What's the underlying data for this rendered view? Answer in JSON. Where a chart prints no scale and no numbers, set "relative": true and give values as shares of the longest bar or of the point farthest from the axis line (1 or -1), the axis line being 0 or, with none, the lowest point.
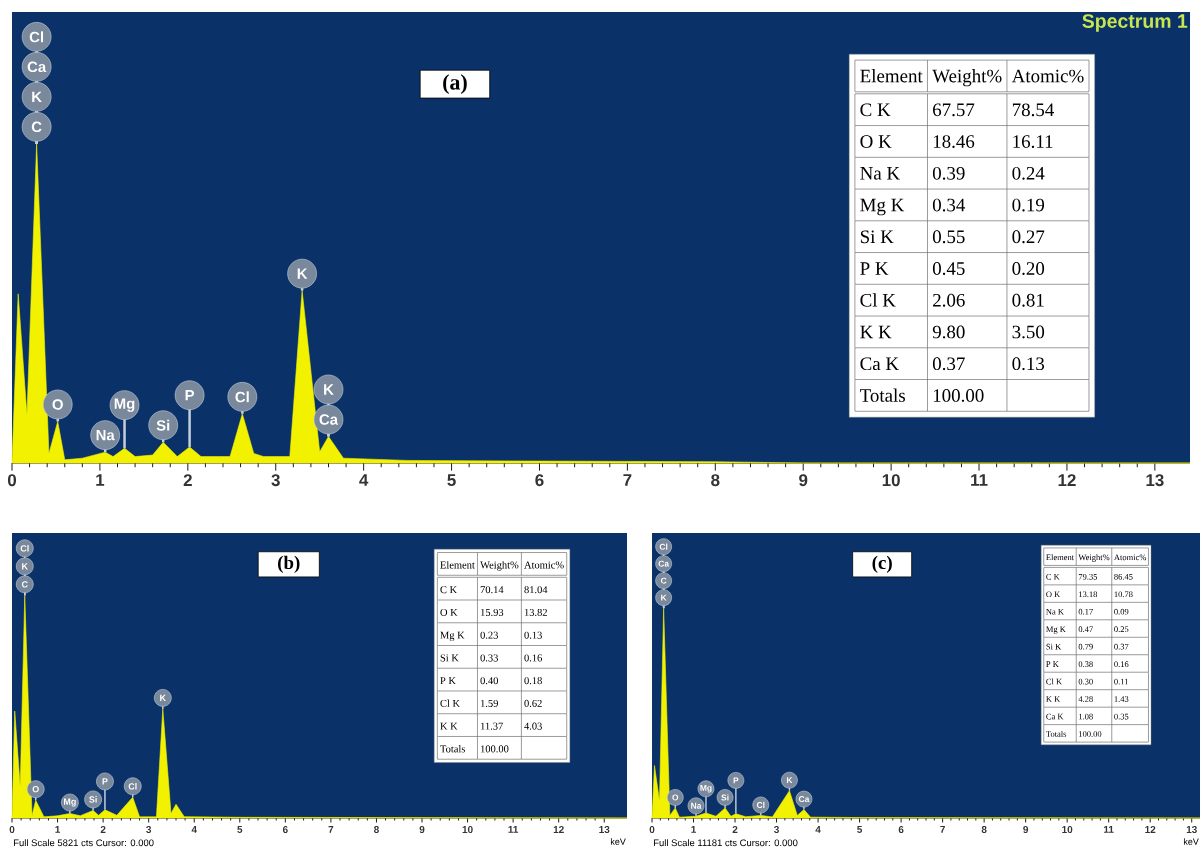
{
  "chart_data": [
    {
      "type": "area",
      "title": "(a)",
      "subtitle": "Spectrum 1",
      "relative": true,
      "color": "#f2f200",
      "xlim": [
        0,
        13.4
      ],
      "xticks": [
        0,
        1,
        2,
        3,
        4,
        5,
        6,
        7,
        8,
        9,
        10,
        11,
        12,
        13
      ],
      "x": [
        0,
        0.07,
        0.17,
        0.28,
        0.42,
        0.52,
        0.6,
        0.8,
        1.06,
        1.15,
        1.28,
        1.4,
        1.6,
        1.72,
        1.88,
        2.02,
        2.15,
        2.48,
        2.62,
        2.75,
        2.86,
        3.16,
        3.3,
        3.5,
        3.6,
        3.77,
        4.5,
        6,
        8,
        9,
        13.4
      ],
      "values": [
        0,
        0.53,
        0.15,
        1,
        0.03,
        0.13,
        0.01,
        0.015,
        0.034,
        0.02,
        0.046,
        0.02,
        0.025,
        0.065,
        0.02,
        0.05,
        0.02,
        0.02,
        0.154,
        0.03,
        0.02,
        0.02,
        0.54,
        0.035,
        0.083,
        0.015,
        0.008,
        0.006,
        0.004,
        0,
        0
      ],
      "annotations": [
        {
          "text": "C",
          "x": 0.28,
          "y": 1
        },
        {
          "text": "K",
          "x": 0.28,
          "y": 1
        },
        {
          "text": "Ca",
          "x": 0.28,
          "y": 1
        },
        {
          "text": "Cl",
          "x": 0.28,
          "y": 1
        },
        {
          "text": "O",
          "x": 0.52,
          "y": 0.13
        },
        {
          "text": "Na",
          "x": 1.06,
          "y": 0.034
        },
        {
          "text": "Mg",
          "x": 1.28,
          "y": 0.046
        },
        {
          "text": "Si",
          "x": 1.72,
          "y": 0.065
        },
        {
          "text": "P",
          "x": 2.02,
          "y": 0.05
        },
        {
          "text": "Cl",
          "x": 2.62,
          "y": 0.154
        },
        {
          "text": "K",
          "x": 3.3,
          "y": 0.54
        },
        {
          "text": "Ca",
          "x": 3.6,
          "y": 0.083
        },
        {
          "text": "K",
          "x": 3.6,
          "y": 0.083
        }
      ]
    },
    {
      "type": "other",
      "legend_title": "Element",
      "data_labels": true,
      "categories": [
        "C K",
        "O K",
        "Na K",
        "Mg K",
        "Si K",
        "P K",
        "Cl K",
        "K K",
        "Ca K",
        "Totals"
      ],
      "series": [
        {
          "name": "Weight%",
          "values": [
            67.57,
            18.46,
            0.39,
            0.34,
            0.55,
            0.45,
            2.06,
            9.8,
            0.37,
            100
          ],
          "value_labels": [
            "67.57",
            "18.46",
            "0.39",
            "0.34",
            "0.55",
            "0.45",
            "2.06",
            "9.80",
            "0.37",
            "100.00"
          ]
        },
        {
          "name": "Atomic%",
          "values": [
            78.54,
            16.11,
            0.24,
            0.19,
            0.27,
            0.2,
            0.81,
            3.5,
            0.13,
            null
          ],
          "value_labels": [
            "78.54",
            "16.11",
            "0.24",
            "0.19",
            "0.27",
            "0.20",
            "0.81",
            "3.50",
            "0.13",
            null
          ]
        }
      ]
    },
    {
      "type": "area",
      "title": "(b)",
      "xlabel": "keV",
      "relative": true,
      "color": "#f2f200",
      "xlim": [
        0,
        13.5
      ],
      "xticks": [
        0,
        1,
        2,
        3,
        4,
        5,
        6,
        7,
        8,
        9,
        10,
        11,
        12,
        13
      ],
      "x": [
        0,
        0.06,
        0.18,
        0.28,
        0.44,
        0.52,
        0.7,
        1.0,
        1.27,
        1.5,
        1.78,
        1.9,
        2.04,
        2.3,
        2.65,
        2.8,
        3.17,
        3.31,
        3.49,
        3.6,
        3.78,
        5,
        13.5
      ],
      "values": [
        0,
        0.48,
        0.14,
        1,
        0.01,
        0.08,
        0.005,
        0.01,
        0.02,
        0.01,
        0.034,
        0.012,
        0.037,
        0.012,
        0.093,
        0.005,
        0.005,
        0.49,
        0.02,
        0.062,
        0.006,
        0.003,
        0
      ],
      "annotations": [
        {
          "text": "C",
          "x": 0.28,
          "y": 1
        },
        {
          "text": "K",
          "x": 0.28,
          "y": 1
        },
        {
          "text": "Cl",
          "x": 0.28,
          "y": 1
        },
        {
          "text": "O",
          "x": 0.52,
          "y": 0.08
        },
        {
          "text": "Mg",
          "x": 1.27,
          "y": 0.02
        },
        {
          "text": "Si",
          "x": 1.78,
          "y": 0.034
        },
        {
          "text": "P",
          "x": 2.04,
          "y": 0.037
        },
        {
          "text": "Cl",
          "x": 2.65,
          "y": 0.093
        },
        {
          "text": "K",
          "x": 3.31,
          "y": 0.49
        },
        "Full Scale 5821 cts Cursor: 0.000"
      ]
    },
    {
      "type": "other",
      "legend_title": "Element",
      "data_labels": true,
      "categories": [
        "C K",
        "O K",
        "Mg K",
        "Si K",
        "P K",
        "Cl K",
        "K K",
        "Totals"
      ],
      "series": [
        {
          "name": "Weight%",
          "values": [
            70.14,
            15.93,
            0.23,
            0.33,
            0.4,
            1.59,
            11.37,
            100
          ],
          "value_labels": [
            "70.14",
            "15.93",
            "0.23",
            "0.33",
            "0.40",
            "1.59",
            "11.37",
            "100.00"
          ]
        },
        {
          "name": "Atomic%",
          "values": [
            81.04,
            13.82,
            0.13,
            0.16,
            0.18,
            0.62,
            4.03,
            null
          ],
          "value_labels": [
            "81.04",
            "13.82",
            "0.13",
            "0.16",
            "0.18",
            "0.62",
            "4.03",
            null
          ]
        }
      ]
    },
    {
      "type": "area",
      "title": "(c)",
      "xlabel": "keV",
      "relative": true,
      "color": "#f2f200",
      "xlim": [
        0,
        13.2
      ],
      "xticks": [
        0,
        1,
        2,
        3,
        4,
        5,
        6,
        7,
        8,
        9,
        10,
        11,
        12,
        13
      ],
      "x": [
        0,
        0.06,
        0.18,
        0.28,
        0.43,
        0.56,
        0.66,
        1.06,
        1.3,
        1.54,
        1.76,
        1.9,
        2.02,
        2.26,
        2.62,
        2.9,
        3.31,
        3.5,
        3.66,
        3.82,
        5,
        13.2
      ],
      "values": [
        0,
        0.25,
        0.08,
        1,
        0.012,
        0.048,
        0.004,
        0.008,
        0.024,
        0.008,
        0.048,
        0.008,
        0.02,
        0.006,
        0.012,
        0.005,
        0.13,
        0.012,
        0.04,
        0.004,
        0.002,
        0
      ],
      "annotations": [
        {
          "text": "K",
          "x": 0.28,
          "y": 1
        },
        {
          "text": "C",
          "x": 0.28,
          "y": 1
        },
        {
          "text": "Ca",
          "x": 0.28,
          "y": 1
        },
        {
          "text": "Cl",
          "x": 0.28,
          "y": 1
        },
        {
          "text": "O",
          "x": 0.56,
          "y": 0.048
        },
        {
          "text": "Na",
          "x": 1.06,
          "y": 0.008
        },
        {
          "text": "Mg",
          "x": 1.3,
          "y": 0.024
        },
        {
          "text": "Si",
          "x": 1.76,
          "y": 0.048
        },
        {
          "text": "P",
          "x": 2.02,
          "y": 0.02
        },
        {
          "text": "Cl",
          "x": 2.62,
          "y": 0.012
        },
        {
          "text": "K",
          "x": 3.31,
          "y": 0.13
        },
        {
          "text": "Ca",
          "x": 3.66,
          "y": 0.04
        },
        "Full Scale 11181 cts Cursor: 0.000"
      ]
    },
    {
      "type": "other",
      "legend_title": "Element",
      "data_labels": true,
      "categories": [
        "C K",
        "O K",
        "Na K",
        "Mg K",
        "Si K",
        "P K",
        "Cl K",
        "K K",
        "Ca K",
        "Totals"
      ],
      "series": [
        {
          "name": "Weight%",
          "values": [
            79.35,
            13.18,
            0.17,
            0.47,
            0.79,
            0.38,
            0.3,
            4.28,
            1.08,
            100
          ],
          "value_labels": [
            "79.35",
            "13.18",
            "0.17",
            "0.47",
            "0.79",
            "0.38",
            "0.30",
            "4.28",
            "1.08",
            "100.00"
          ]
        },
        {
          "name": "Atomic%",
          "values": [
            86.45,
            10.78,
            0.09,
            0.25,
            0.37,
            0.16,
            0.11,
            1.43,
            0.35,
            null
          ],
          "value_labels": [
            "86.45",
            "10.78",
            "0.09",
            "0.25",
            "0.37",
            "0.16",
            "0.11",
            "1.43",
            "0.35",
            null
          ]
        }
      ]
    }
  ]
}
